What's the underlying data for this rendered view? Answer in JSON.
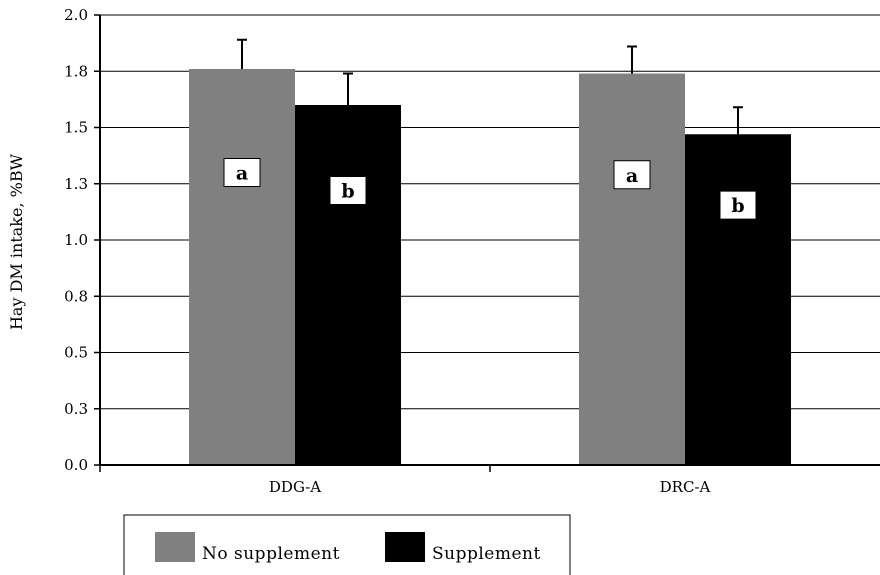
{
  "chart_data": {
    "type": "bar",
    "categories": [
      "DDG-A",
      "DRC-A"
    ],
    "series": [
      {
        "name": "No supplement",
        "color": "#808080",
        "values": [
          1.76,
          1.74
        ],
        "errors": [
          0.13,
          0.12
        ],
        "labels": [
          "a",
          "a"
        ]
      },
      {
        "name": "Supplement",
        "color": "#000000",
        "values": [
          1.6,
          1.47
        ],
        "errors": [
          0.14,
          0.12
        ],
        "labels": [
          "b",
          "b"
        ]
      }
    ],
    "ylabel": "Hay DM intake, %BW",
    "xlabel": "",
    "ylim": [
      0,
      2.0
    ],
    "yticks": [
      0,
      0.25,
      0.5,
      0.75,
      1.0,
      1.25,
      1.5,
      1.75,
      2.0
    ],
    "ytick_labels": [
      "0.0",
      "0.3",
      "0.5",
      "0.8",
      "1.0",
      "1.3",
      "1.5",
      "1.8",
      "2.0"
    ],
    "grid": true,
    "legend_position": "bottom"
  }
}
